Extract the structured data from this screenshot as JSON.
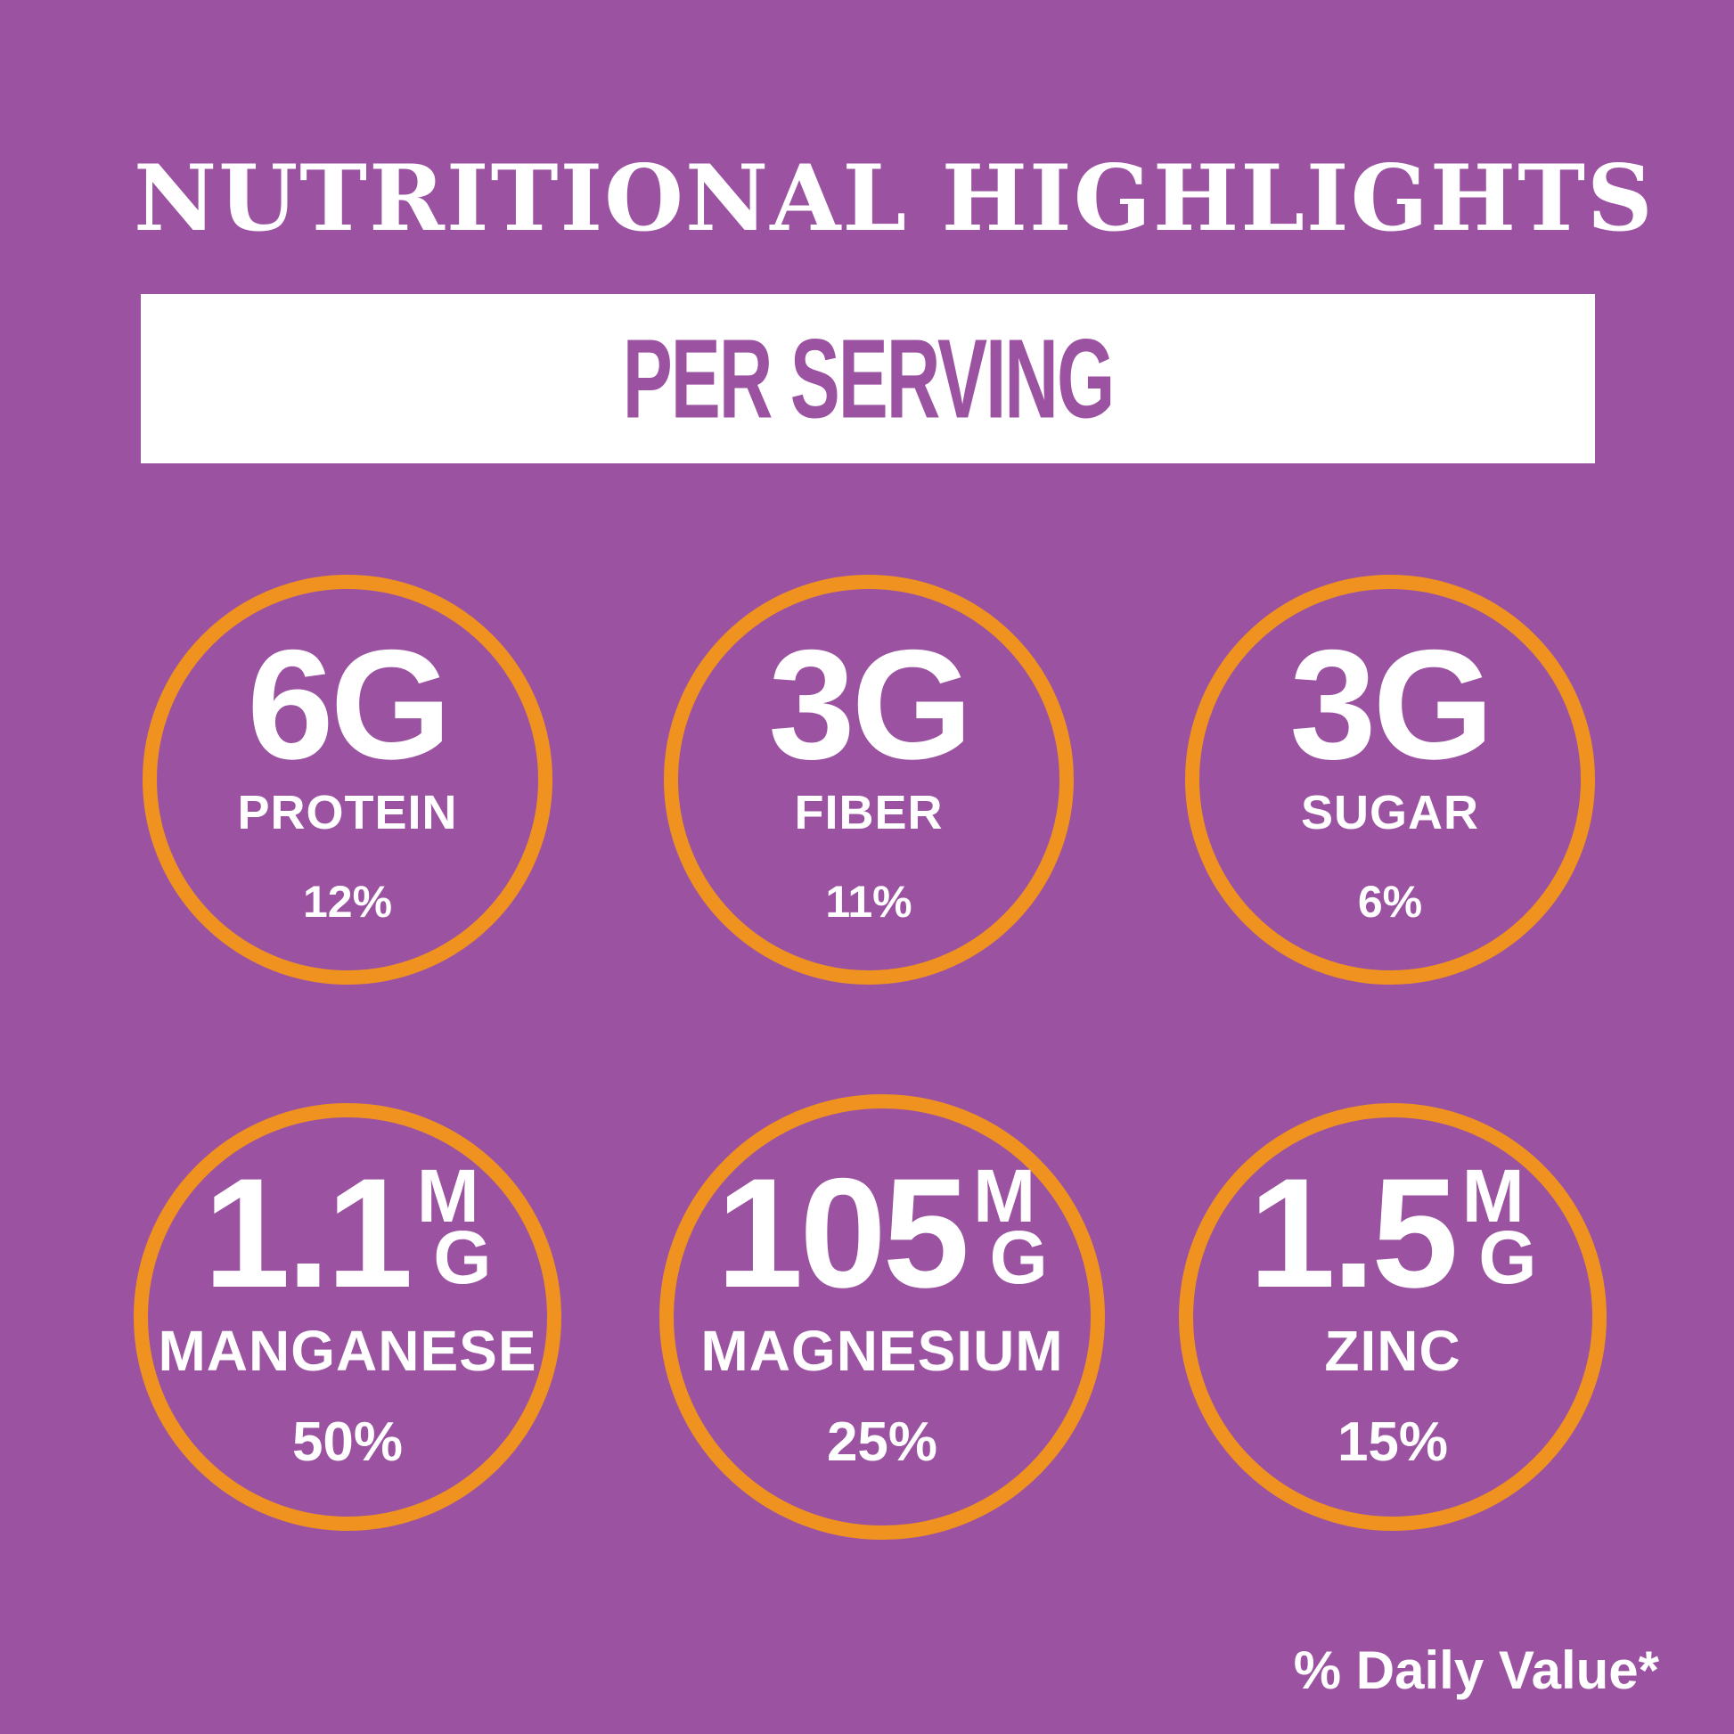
{
  "colors": {
    "background": "#9b53a1",
    "ring": "#f0921f",
    "bar": "#ffffff",
    "subtitle_text": "#9b53a1",
    "text": "#ffffff"
  },
  "header": {
    "title": "NUTRITIONAL HIGHLIGHTS",
    "subtitle": "PER SERVING"
  },
  "footer": {
    "daily_value_note": "% Daily Value*"
  },
  "nutrients": [
    {
      "value": "6G",
      "name": "PROTEIN",
      "daily_value": "12%"
    },
    {
      "value": "3G",
      "name": "FIBER",
      "daily_value": "11%"
    },
    {
      "value": "3G",
      "name": "SUGAR",
      "daily_value": "6%"
    },
    {
      "value": "1.1",
      "unit_top": "M",
      "unit_bottom": "G",
      "name": "MANGANESE",
      "daily_value": "50%"
    },
    {
      "value": "105",
      "unit_top": "M",
      "unit_bottom": "G",
      "name": "MAGNESIUM",
      "daily_value": "25%"
    },
    {
      "value": "1.5",
      "unit_top": "M",
      "unit_bottom": "G",
      "name": "ZINC",
      "daily_value": "15%"
    }
  ]
}
